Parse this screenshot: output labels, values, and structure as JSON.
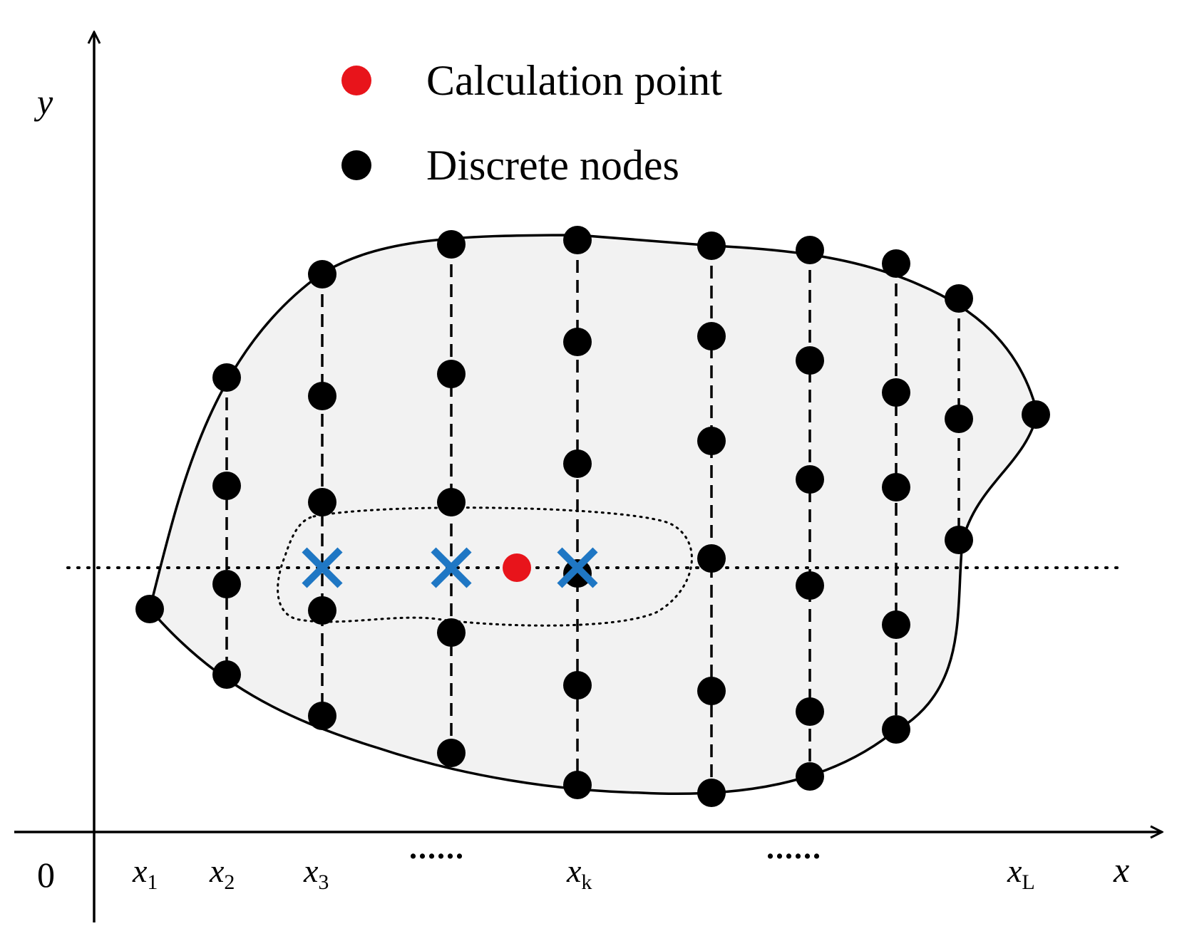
{
  "legend": {
    "calculation_point": "Calculation point",
    "discrete_nodes": "Discrete nodes"
  },
  "axes": {
    "x_label": "x",
    "y_label": "y",
    "origin": "0"
  },
  "ticks": [
    {
      "main": "x",
      "sub": "1"
    },
    {
      "main": "x",
      "sub": "2"
    },
    {
      "main": "x",
      "sub": "3"
    },
    {
      "main": "x",
      "sub": "k"
    },
    {
      "main": "x",
      "sub": "L"
    }
  ],
  "ellipsis_left": "......",
  "ellipsis_right": "......",
  "colors": {
    "calculation_point": "#e8141b",
    "discrete_node": "#000000",
    "interpolated_marker": "#1f77c4",
    "domain_fill": "#f2f2f2"
  }
}
